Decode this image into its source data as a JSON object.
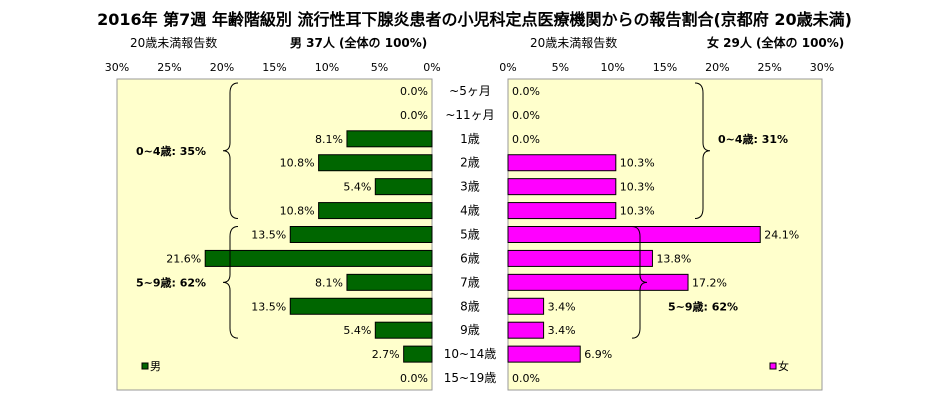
{
  "chart_data": {
    "type": "bar",
    "title": "2016年 第7週 年齢階級別 流行性耳下腺炎患者の小児科定点医療機関からの報告割合(京都府 20歳未満)",
    "left_panel": {
      "caption": "20歳未満報告数",
      "header": "男 37人 (全体の 100%)",
      "legend": "男",
      "color": "#006600"
    },
    "right_panel": {
      "caption": "20歳未満報告数",
      "header": "女 29人 (全体の 100%)",
      "legend": "女",
      "color": "#ff00ff"
    },
    "x_ticks_left": [
      "30%",
      "25%",
      "20%",
      "15%",
      "10%",
      "5%",
      "0%"
    ],
    "x_ticks_right": [
      "0%",
      "5%",
      "10%",
      "15%",
      "20%",
      "25%",
      "30%"
    ],
    "xlim": [
      0,
      30
    ],
    "categories": [
      "~5ヶ月",
      "~11ヶ月",
      "1歳",
      "2歳",
      "3歳",
      "4歳",
      "5歳",
      "6歳",
      "7歳",
      "8歳",
      "9歳",
      "10~14歳",
      "15~19歳"
    ],
    "series": [
      {
        "name": "男",
        "values": [
          0.0,
          0.0,
          8.1,
          10.8,
          5.4,
          10.8,
          13.5,
          21.6,
          8.1,
          13.5,
          5.4,
          2.7,
          0.0
        ],
        "labels": [
          "0.0%",
          "0.0%",
          "8.1%",
          "10.8%",
          "5.4%",
          "10.8%",
          "13.5%",
          "21.6%",
          "8.1%",
          "13.5%",
          "5.4%",
          "2.7%",
          "0.0%"
        ]
      },
      {
        "name": "女",
        "values": [
          0.0,
          0.0,
          0.0,
          10.3,
          10.3,
          10.3,
          24.1,
          13.8,
          17.2,
          3.4,
          3.4,
          6.9,
          0.0
        ],
        "labels": [
          "0.0%",
          "0.0%",
          "0.0%",
          "10.3%",
          "10.3%",
          "10.3%",
          "24.1%",
          "13.8%",
          "17.2%",
          "3.4%",
          "3.4%",
          "6.9%",
          "0.0%"
        ]
      }
    ],
    "annotations": {
      "male_0_4": "0~4歳: 35%",
      "male_5_9": "5~9歳: 62%",
      "female_0_4": "0~4歳: 31%",
      "female_5_9": "5~9歳: 62%"
    }
  }
}
